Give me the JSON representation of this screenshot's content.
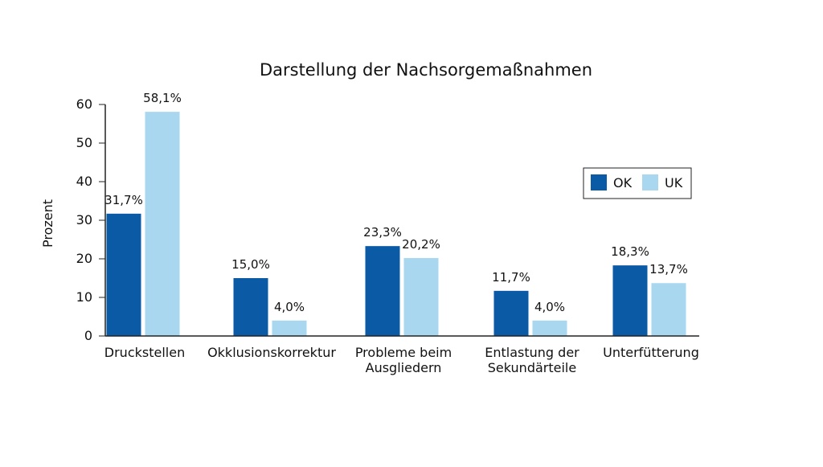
{
  "chart_data": {
    "type": "bar",
    "title": "Darstellung der Nachsorgemaßnahmen",
    "xlabel": "",
    "ylabel": "Prozent",
    "ylim": [
      0,
      60
    ],
    "yticks": [
      "0",
      "10",
      "20",
      "30",
      "40",
      "50",
      "60"
    ],
    "grid": false,
    "legend_position": "right",
    "categories": [
      [
        "Druckstellen"
      ],
      [
        "Okklusionskorrektur"
      ],
      [
        "Probleme beim",
        "Ausgliedern"
      ],
      [
        "Entlastung der",
        "Sekundärteile"
      ],
      [
        "Unterfütterung"
      ]
    ],
    "series": [
      {
        "name": "OK",
        "color": "#0b5aa6",
        "values": [
          31.7,
          15.0,
          23.3,
          11.7,
          18.3
        ],
        "labels": [
          "31,7%",
          "15,0%",
          "23,3%",
          "11,7%",
          "18,3%"
        ]
      },
      {
        "name": "UK",
        "color": "#a9d7f0",
        "values": [
          58.1,
          4.0,
          20.2,
          4.0,
          13.7
        ],
        "labels": [
          "58,1%",
          "4,0%",
          "20,2%",
          "4,0%",
          "13,7%"
        ]
      }
    ]
  }
}
